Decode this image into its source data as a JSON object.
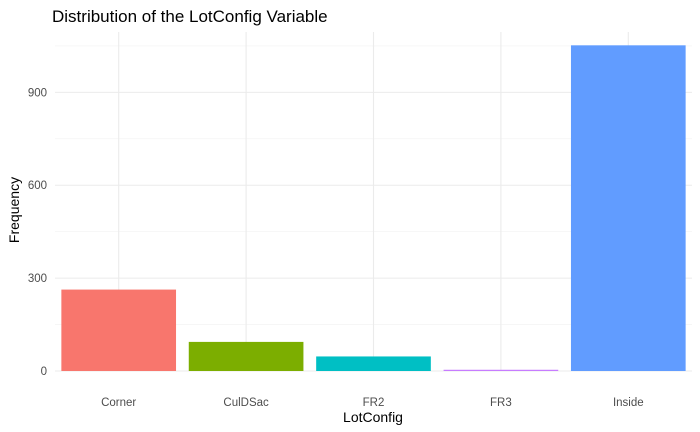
{
  "chart_data": {
    "type": "bar",
    "title": "Distribution of the LotConfig Variable",
    "xlabel": "LotConfig",
    "ylabel": "Frequency",
    "categories": [
      "Corner",
      "CulDSac",
      "FR2",
      "FR3",
      "Inside"
    ],
    "values": [
      263,
      94,
      47,
      4,
      1052
    ],
    "colors": [
      "#F8766D",
      "#7CAE00",
      "#00BFC4",
      "#C77CFF",
      "#619CFF"
    ],
    "ylim": [
      0,
      1095
    ],
    "yticks": [
      0,
      300,
      600,
      900
    ],
    "grid": true,
    "legend": "none"
  }
}
